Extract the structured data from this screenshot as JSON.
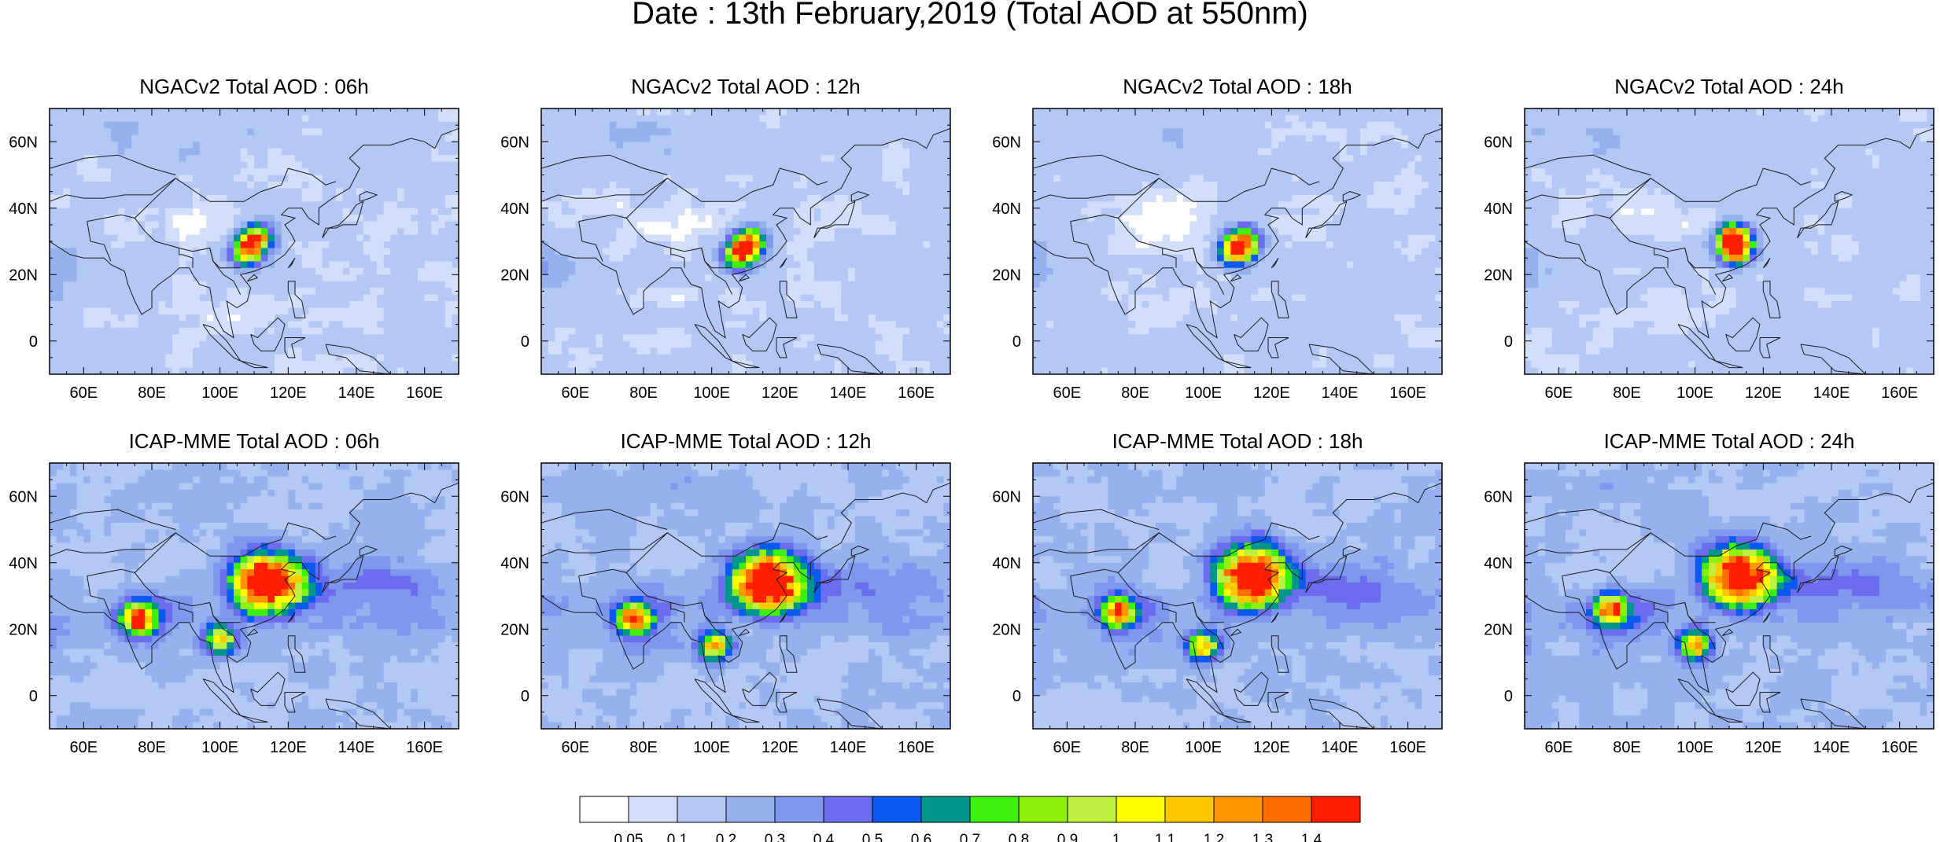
{
  "page_title": "Date : 13th February,2019 (Total AOD at 550nm)",
  "chart_data": [
    {
      "type": "heatmap",
      "title": "NGACv2 Total AOD : 06h",
      "model": "NGACv2",
      "hour": "06h",
      "xlim": [
        50,
        170
      ],
      "ylim": [
        -10,
        70
      ],
      "x_ticks": [
        "60E",
        "80E",
        "100E",
        "120E",
        "140E",
        "160E"
      ],
      "x_tick_values": [
        60,
        80,
        100,
        120,
        140,
        160
      ],
      "y_ticks": [
        "0",
        "20N",
        "40N",
        "60N"
      ],
      "y_tick_values": [
        0,
        20,
        40,
        60
      ],
      "plumes": [
        {
          "lon": 111,
          "lat": 31,
          "value": 0.8,
          "note": "Sichuan Basin / central-east China"
        },
        {
          "lon": 108,
          "lat": 27,
          "value": 0.9
        }
      ]
    },
    {
      "type": "heatmap",
      "title": "NGACv2 Total AOD : 12h",
      "model": "NGACv2",
      "hour": "12h",
      "xlim": [
        50,
        170
      ],
      "ylim": [
        -10,
        70
      ],
      "x_ticks": [
        "60E",
        "80E",
        "100E",
        "120E",
        "140E",
        "160E"
      ],
      "x_tick_values": [
        60,
        80,
        100,
        120,
        140,
        160
      ],
      "y_ticks": [
        "0",
        "20N",
        "40N",
        "60N"
      ],
      "y_tick_values": [
        0,
        20,
        40,
        60
      ],
      "plumes": [
        {
          "lon": 111,
          "lat": 30,
          "value": 0.8
        },
        {
          "lon": 108,
          "lat": 26,
          "value": 0.9
        }
      ]
    },
    {
      "type": "heatmap",
      "title": "NGACv2 Total AOD : 18h",
      "model": "NGACv2",
      "hour": "18h",
      "xlim": [
        50,
        170
      ],
      "ylim": [
        -10,
        70
      ],
      "x_ticks": [
        "60E",
        "80E",
        "100E",
        "120E",
        "140E",
        "160E"
      ],
      "x_tick_values": [
        60,
        80,
        100,
        120,
        140,
        160
      ],
      "y_ticks": [
        "0",
        "20N",
        "40N",
        "60N"
      ],
      "y_tick_values": [
        0,
        20,
        40,
        60
      ],
      "plumes": [
        {
          "lon": 112,
          "lat": 30,
          "value": 0.8
        },
        {
          "lon": 109,
          "lat": 27,
          "value": 0.9
        }
      ]
    },
    {
      "type": "heatmap",
      "title": "NGACv2 Total AOD : 24h",
      "model": "NGACv2",
      "hour": "24h",
      "xlim": [
        50,
        170
      ],
      "ylim": [
        -10,
        70
      ],
      "x_ticks": [
        "60E",
        "80E",
        "100E",
        "120E",
        "140E",
        "160E"
      ],
      "x_tick_values": [
        60,
        80,
        100,
        120,
        140,
        160
      ],
      "y_ticks": [
        "0",
        "20N",
        "40N",
        "60N"
      ],
      "y_tick_values": [
        0,
        20,
        40,
        60
      ],
      "plumes": [
        {
          "lon": 111,
          "lat": 31,
          "value": 1.3
        },
        {
          "lon": 112,
          "lat": 27,
          "value": 0.9
        }
      ]
    },
    {
      "type": "heatmap",
      "title": "ICAP-MME Total AOD : 06h",
      "model": "ICAP-MME",
      "hour": "06h",
      "xlim": [
        50,
        170
      ],
      "ylim": [
        -10,
        70
      ],
      "x_ticks": [
        "60E",
        "80E",
        "100E",
        "120E",
        "140E",
        "160E"
      ],
      "x_tick_values": [
        60,
        80,
        100,
        120,
        140,
        160
      ],
      "y_ticks": [
        "0",
        "20N",
        "40N",
        "60N"
      ],
      "y_tick_values": [
        0,
        20,
        40,
        60
      ],
      "plumes": [
        {
          "lon": 114,
          "lat": 34,
          "value": 1.4
        },
        {
          "lon": 76,
          "lat": 23,
          "value": 0.9
        },
        {
          "lon": 100,
          "lat": 17,
          "value": 0.7
        }
      ]
    },
    {
      "type": "heatmap",
      "title": "ICAP-MME Total AOD : 12h",
      "model": "ICAP-MME",
      "hour": "12h",
      "xlim": [
        50,
        170
      ],
      "ylim": [
        -10,
        70
      ],
      "x_ticks": [
        "60E",
        "80E",
        "100E",
        "120E",
        "140E",
        "160E"
      ],
      "x_tick_values": [
        60,
        80,
        100,
        120,
        140,
        160
      ],
      "y_ticks": [
        "0",
        "20N",
        "40N",
        "60N"
      ],
      "y_tick_values": [
        0,
        20,
        40,
        60
      ],
      "plumes": [
        {
          "lon": 116,
          "lat": 34,
          "value": 1.4
        },
        {
          "lon": 77,
          "lat": 23,
          "value": 0.9
        },
        {
          "lon": 101,
          "lat": 15,
          "value": 0.7
        }
      ]
    },
    {
      "type": "heatmap",
      "title": "ICAP-MME Total AOD : 18h",
      "model": "ICAP-MME",
      "hour": "18h",
      "xlim": [
        50,
        170
      ],
      "ylim": [
        -10,
        70
      ],
      "x_ticks": [
        "60E",
        "80E",
        "100E",
        "120E",
        "140E",
        "160E"
      ],
      "x_tick_values": [
        60,
        80,
        100,
        120,
        140,
        160
      ],
      "y_ticks": [
        "0",
        "20N",
        "40N",
        "60N"
      ],
      "y_tick_values": [
        0,
        20,
        40,
        60
      ],
      "plumes": [
        {
          "lon": 114,
          "lat": 36,
          "value": 1.4
        },
        {
          "lon": 75,
          "lat": 25,
          "value": 0.9
        },
        {
          "lon": 100,
          "lat": 15,
          "value": 0.7
        }
      ]
    },
    {
      "type": "heatmap",
      "title": "ICAP-MME Total AOD : 24h",
      "model": "ICAP-MME",
      "hour": "24h",
      "xlim": [
        50,
        170
      ],
      "ylim": [
        -10,
        70
      ],
      "x_ticks": [
        "60E",
        "80E",
        "100E",
        "120E",
        "140E",
        "160E"
      ],
      "x_tick_values": [
        60,
        80,
        100,
        120,
        140,
        160
      ],
      "y_ticks": [
        "0",
        "20N",
        "40N",
        "60N"
      ],
      "y_tick_values": [
        0,
        20,
        40,
        60
      ],
      "plumes": [
        {
          "lon": 113,
          "lat": 36,
          "value": 1.4
        },
        {
          "lon": 75,
          "lat": 26,
          "value": 0.9
        },
        {
          "lon": 100,
          "lat": 15,
          "value": 0.7
        }
      ]
    }
  ],
  "colorbar": {
    "labels": [
      "0.05",
      "0.1",
      "0.2",
      "0.3",
      "0.4",
      "0.5",
      "0.6",
      "0.7",
      "0.8",
      "0.9",
      "1",
      "1.1",
      "1.2",
      "1.3",
      "1.4"
    ],
    "colors": [
      "#ffffff",
      "#d2dffa",
      "#b4c8f5",
      "#96b1ee",
      "#7f98ee",
      "#6c6cee",
      "#0a5af0",
      "#00968c",
      "#3cf00a",
      "#8cf00a",
      "#bef040",
      "#ffff00",
      "#ffc800",
      "#ff9600",
      "#ff6e00",
      "#ff1e00"
    ]
  }
}
